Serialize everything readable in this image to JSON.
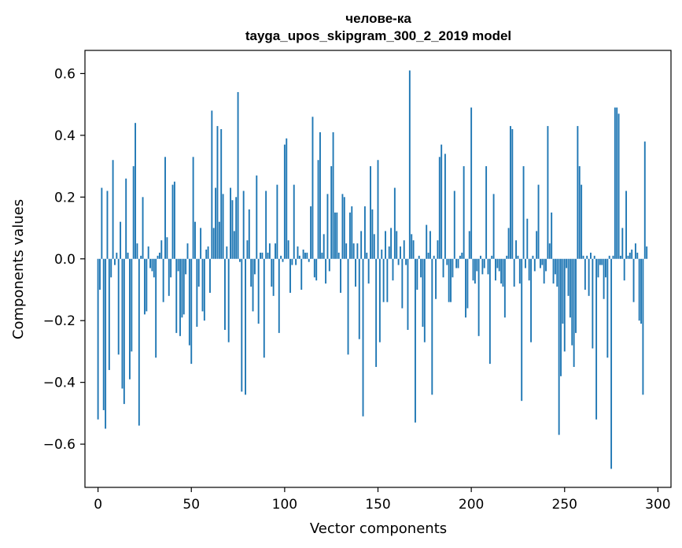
{
  "chart_data": {
    "type": "bar",
    "title": "челове-ка",
    "subtitle": "tayga_upos_skipgram_300_2_2019 model",
    "xlabel": "Vector components",
    "ylabel": "Components values",
    "xlim": [
      -7,
      307
    ],
    "ylim": [
      -0.74,
      0.675
    ],
    "xticks": [
      0,
      50,
      100,
      150,
      200,
      250,
      300
    ],
    "yticks": [
      -0.6,
      -0.4,
      -0.2,
      0.0,
      0.2,
      0.4,
      0.6
    ],
    "ytick_labels": [
      "−0.6",
      "−0.4",
      "−0.2",
      "0.0",
      "0.2",
      "0.4",
      "0.6"
    ],
    "bar_color": "#1f77b4",
    "series": [
      {
        "name": "components",
        "values": [
          -0.52,
          -0.1,
          0.23,
          -0.49,
          -0.55,
          0.22,
          -0.36,
          -0.06,
          0.32,
          -0.02,
          0.02,
          -0.31,
          0.12,
          -0.42,
          -0.47,
          0.26,
          0.02,
          -0.39,
          -0.3,
          0.3,
          0.44,
          0.05,
          -0.54,
          0.01,
          0.2,
          -0.18,
          -0.17,
          0.04,
          -0.03,
          -0.04,
          -0.06,
          -0.32,
          0.01,
          0.02,
          0.06,
          -0.14,
          0.33,
          0.07,
          -0.12,
          -0.06,
          0.24,
          0.25,
          -0.24,
          -0.04,
          -0.25,
          -0.19,
          -0.18,
          -0.05,
          0.05,
          -0.28,
          -0.34,
          0.33,
          0.12,
          -0.22,
          -0.09,
          0.1,
          -0.17,
          -0.2,
          0.03,
          0.04,
          -0.11,
          0.48,
          0.1,
          0.23,
          0.43,
          0.12,
          0.42,
          0.21,
          -0.23,
          0.04,
          -0.27,
          0.23,
          0.19,
          0.09,
          0.2,
          0.54,
          -0.01,
          -0.43,
          0.22,
          -0.44,
          0.06,
          0.16,
          -0.09,
          -0.17,
          -0.05,
          0.27,
          -0.21,
          0.02,
          0.02,
          -0.32,
          0.22,
          0.02,
          0.05,
          -0.09,
          -0.12,
          0.05,
          0.24,
          -0.24,
          0.01,
          -0.01,
          0.37,
          0.39,
          0.06,
          -0.11,
          -0.02,
          0.24,
          -0.02,
          0.04,
          0.01,
          -0.1,
          0.03,
          0.02,
          0.02,
          -0.01,
          0.17,
          0.46,
          -0.06,
          -0.07,
          0.32,
          0.41,
          0.02,
          0.08,
          -0.08,
          0.21,
          -0.04,
          0.3,
          0.41,
          0.15,
          0.15,
          0.02,
          -0.11,
          0.21,
          0.2,
          0.05,
          -0.31,
          0.15,
          0.17,
          0.05,
          -0.09,
          0.05,
          -0.26,
          0.09,
          -0.51,
          0.17,
          0.02,
          -0.08,
          0.3,
          0.16,
          0.08,
          -0.35,
          0.32,
          -0.27,
          0.03,
          -0.14,
          0.09,
          -0.14,
          0.04,
          0.1,
          -0.07,
          0.23,
          0.09,
          -0.02,
          0.04,
          -0.16,
          0.06,
          -0.02,
          -0.23,
          0.61,
          0.08,
          0.06,
          -0.53,
          -0.1,
          0.01,
          -0.06,
          -0.22,
          -0.27,
          0.11,
          0.02,
          0.09,
          -0.44,
          0.01,
          -0.13,
          0.06,
          0.33,
          0.37,
          -0.06,
          0.34,
          -0.02,
          -0.14,
          -0.14,
          -0.06,
          0.22,
          -0.03,
          -0.03,
          0.01,
          0.02,
          0.3,
          -0.19,
          -0.16,
          0.09,
          0.49,
          -0.07,
          -0.08,
          -0.04,
          -0.25,
          0.01,
          -0.05,
          -0.03,
          0.3,
          -0.05,
          -0.34,
          0.01,
          0.21,
          -0.07,
          -0.03,
          -0.04,
          -0.08,
          -0.09,
          -0.19,
          0.01,
          0.1,
          0.43,
          0.42,
          -0.09,
          0.06,
          0.01,
          -0.08,
          -0.46,
          0.3,
          -0.03,
          0.13,
          -0.07,
          -0.27,
          0.01,
          -0.04,
          0.09,
          0.24,
          -0.03,
          -0.02,
          -0.08,
          -0.04,
          0.43,
          0.05,
          0.15,
          -0.08,
          -0.05,
          -0.09,
          -0.57,
          -0.38,
          -0.21,
          -0.3,
          -0.03,
          -0.12,
          -0.19,
          -0.28,
          -0.35,
          -0.24,
          0.43,
          0.3,
          0.24,
          0.01,
          -0.1,
          0.01,
          -0.12,
          0.02,
          -0.29,
          0.01,
          -0.52,
          -0.06,
          -0.02,
          -0.02,
          -0.13,
          -0.06,
          -0.32,
          0.01,
          -0.68,
          0.01,
          0.49,
          0.49,
          0.47,
          0.01,
          0.1,
          -0.07,
          0.22,
          0.01,
          0.02,
          0.03,
          -0.14,
          0.05,
          0.02,
          -0.2,
          -0.21,
          -0.44,
          0.38,
          0.04
        ]
      }
    ]
  }
}
